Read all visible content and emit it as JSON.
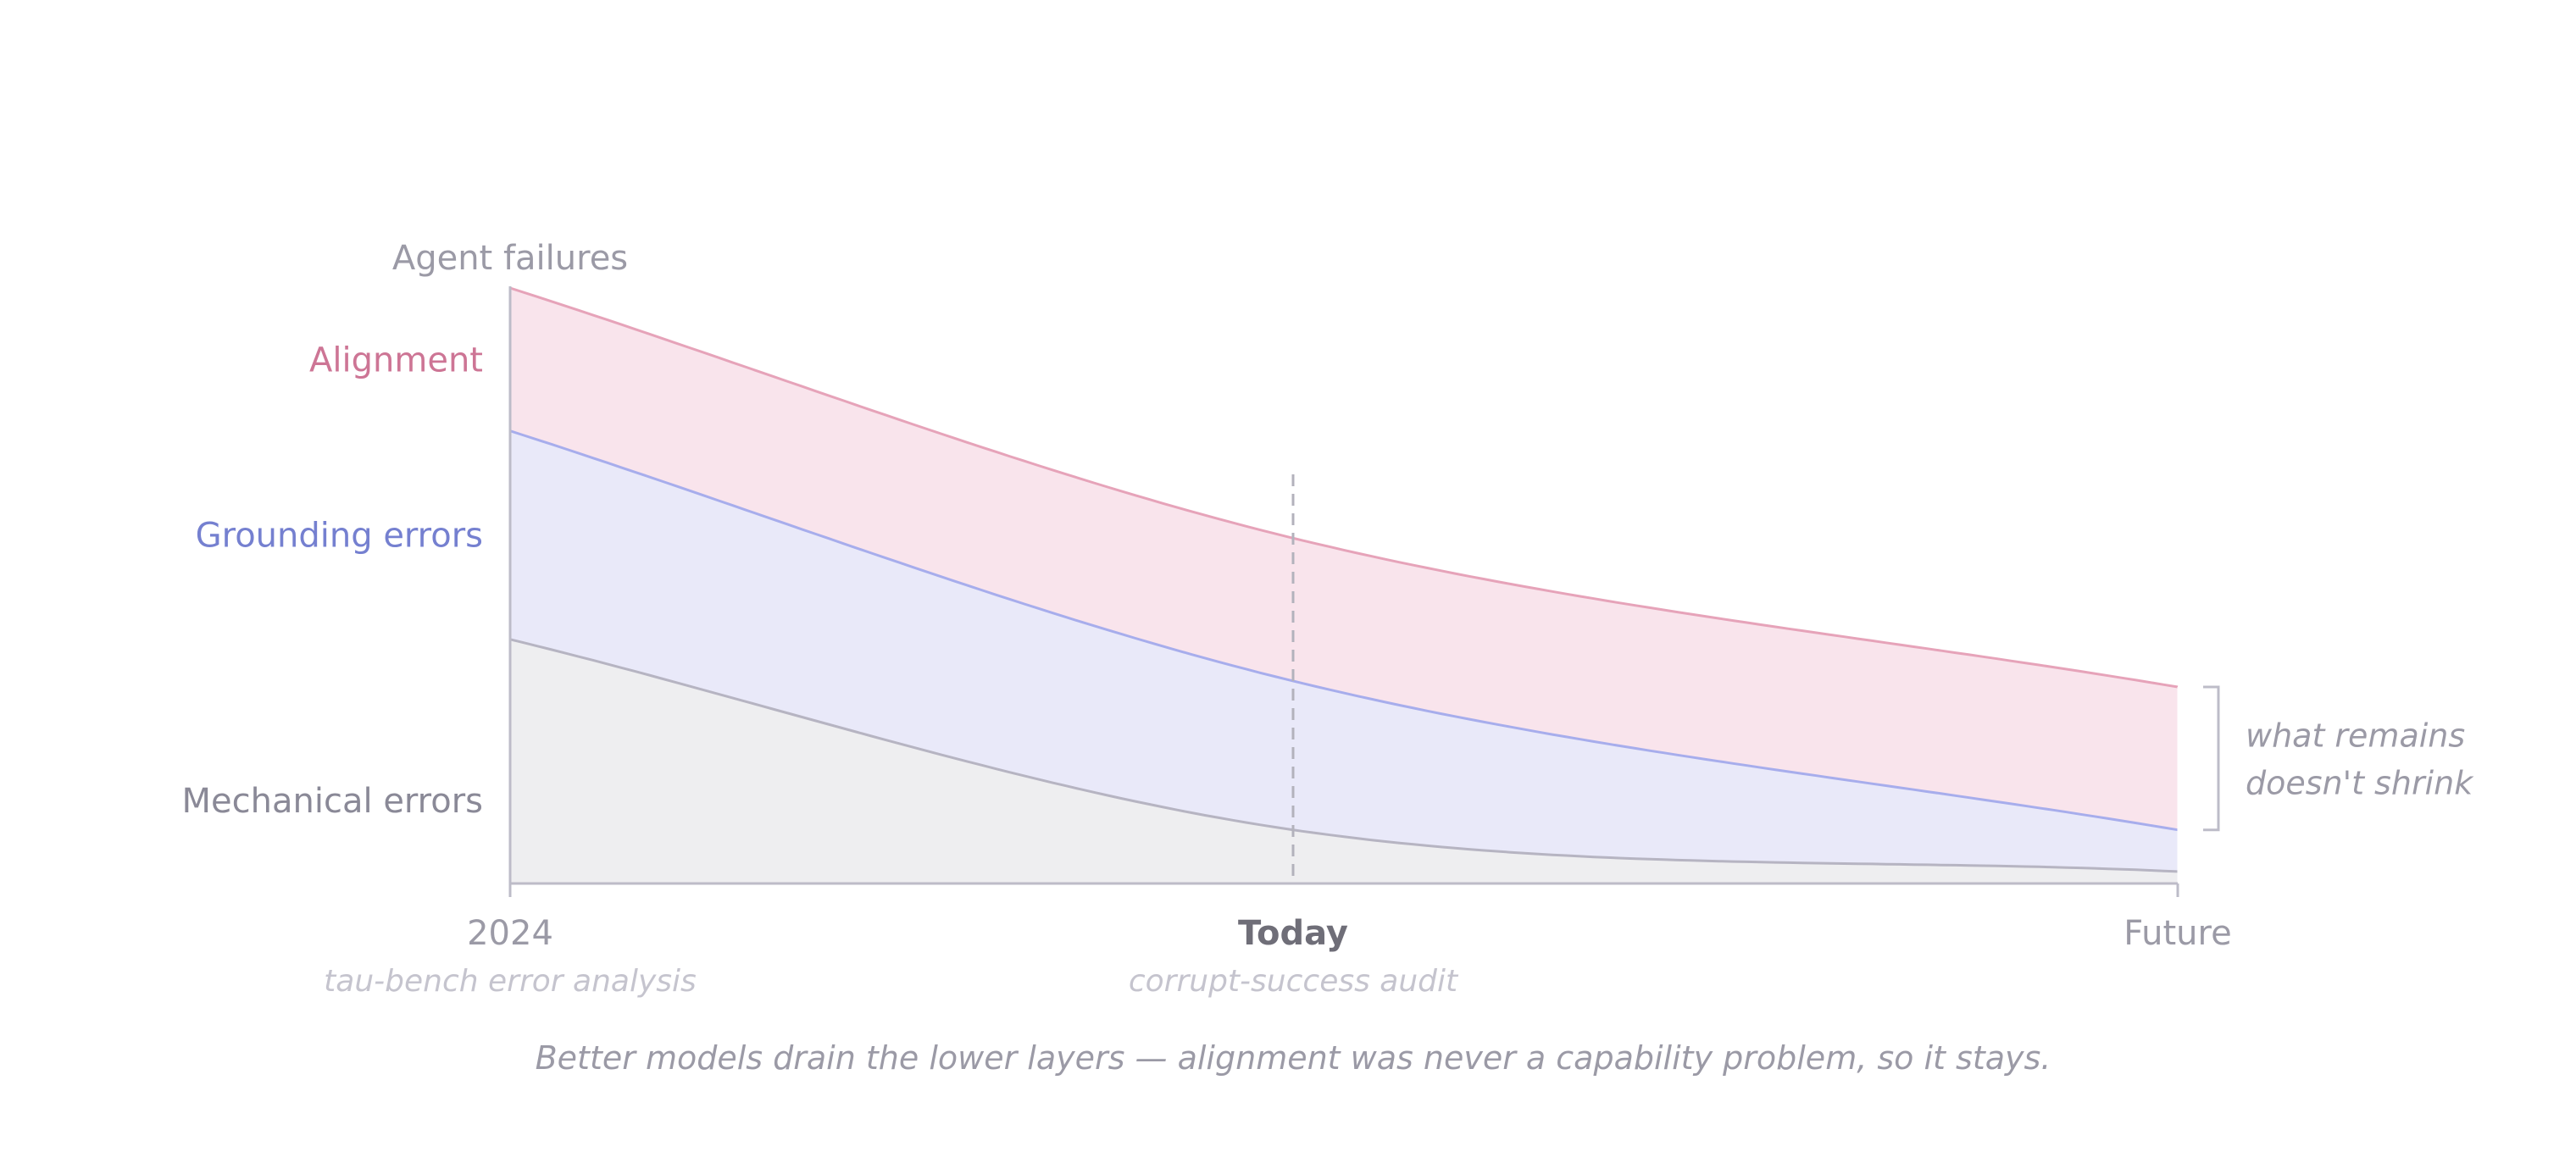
{
  "chart_data": {
    "type": "area",
    "ylabel": "Agent failures",
    "x": [
      "2024",
      "Today",
      "Future"
    ],
    "x_sublabels": [
      "tau-bench error analysis",
      "corrupt-success audit",
      ""
    ],
    "highlight_x": "Today",
    "ylim": [
      0,
      100
    ],
    "series": [
      {
        "name": "Mechanical errors",
        "values": [
          41,
          9,
          2
        ]
      },
      {
        "name": "Grounding errors",
        "values": [
          35,
          25,
          7
        ]
      },
      {
        "name": "Alignment",
        "values": [
          24,
          24,
          24
        ]
      }
    ],
    "annotations": {
      "bracket": [
        "what remains",
        "doesn't shrink"
      ],
      "caption": "Better models drain the lower layers — alignment was never a capability problem, so it stays."
    },
    "colors": {
      "mechanical_fill": "#eeeef0",
      "mechanical_line": "#b6b4c2",
      "grounding_fill": "#e9e9f9",
      "grounding_line": "#a7adec",
      "alignment_fill": "#f9e4ec",
      "alignment_line": "#e6a3b9",
      "mechanical_label": "#8a8997",
      "grounding_label": "#7580d0",
      "alignment_label": "#cd7595",
      "axis": "#bdbcc8",
      "muted_text": "#9b9aa6",
      "faint_text": "#c5c4ce",
      "today_text": "#6f6e78"
    }
  }
}
